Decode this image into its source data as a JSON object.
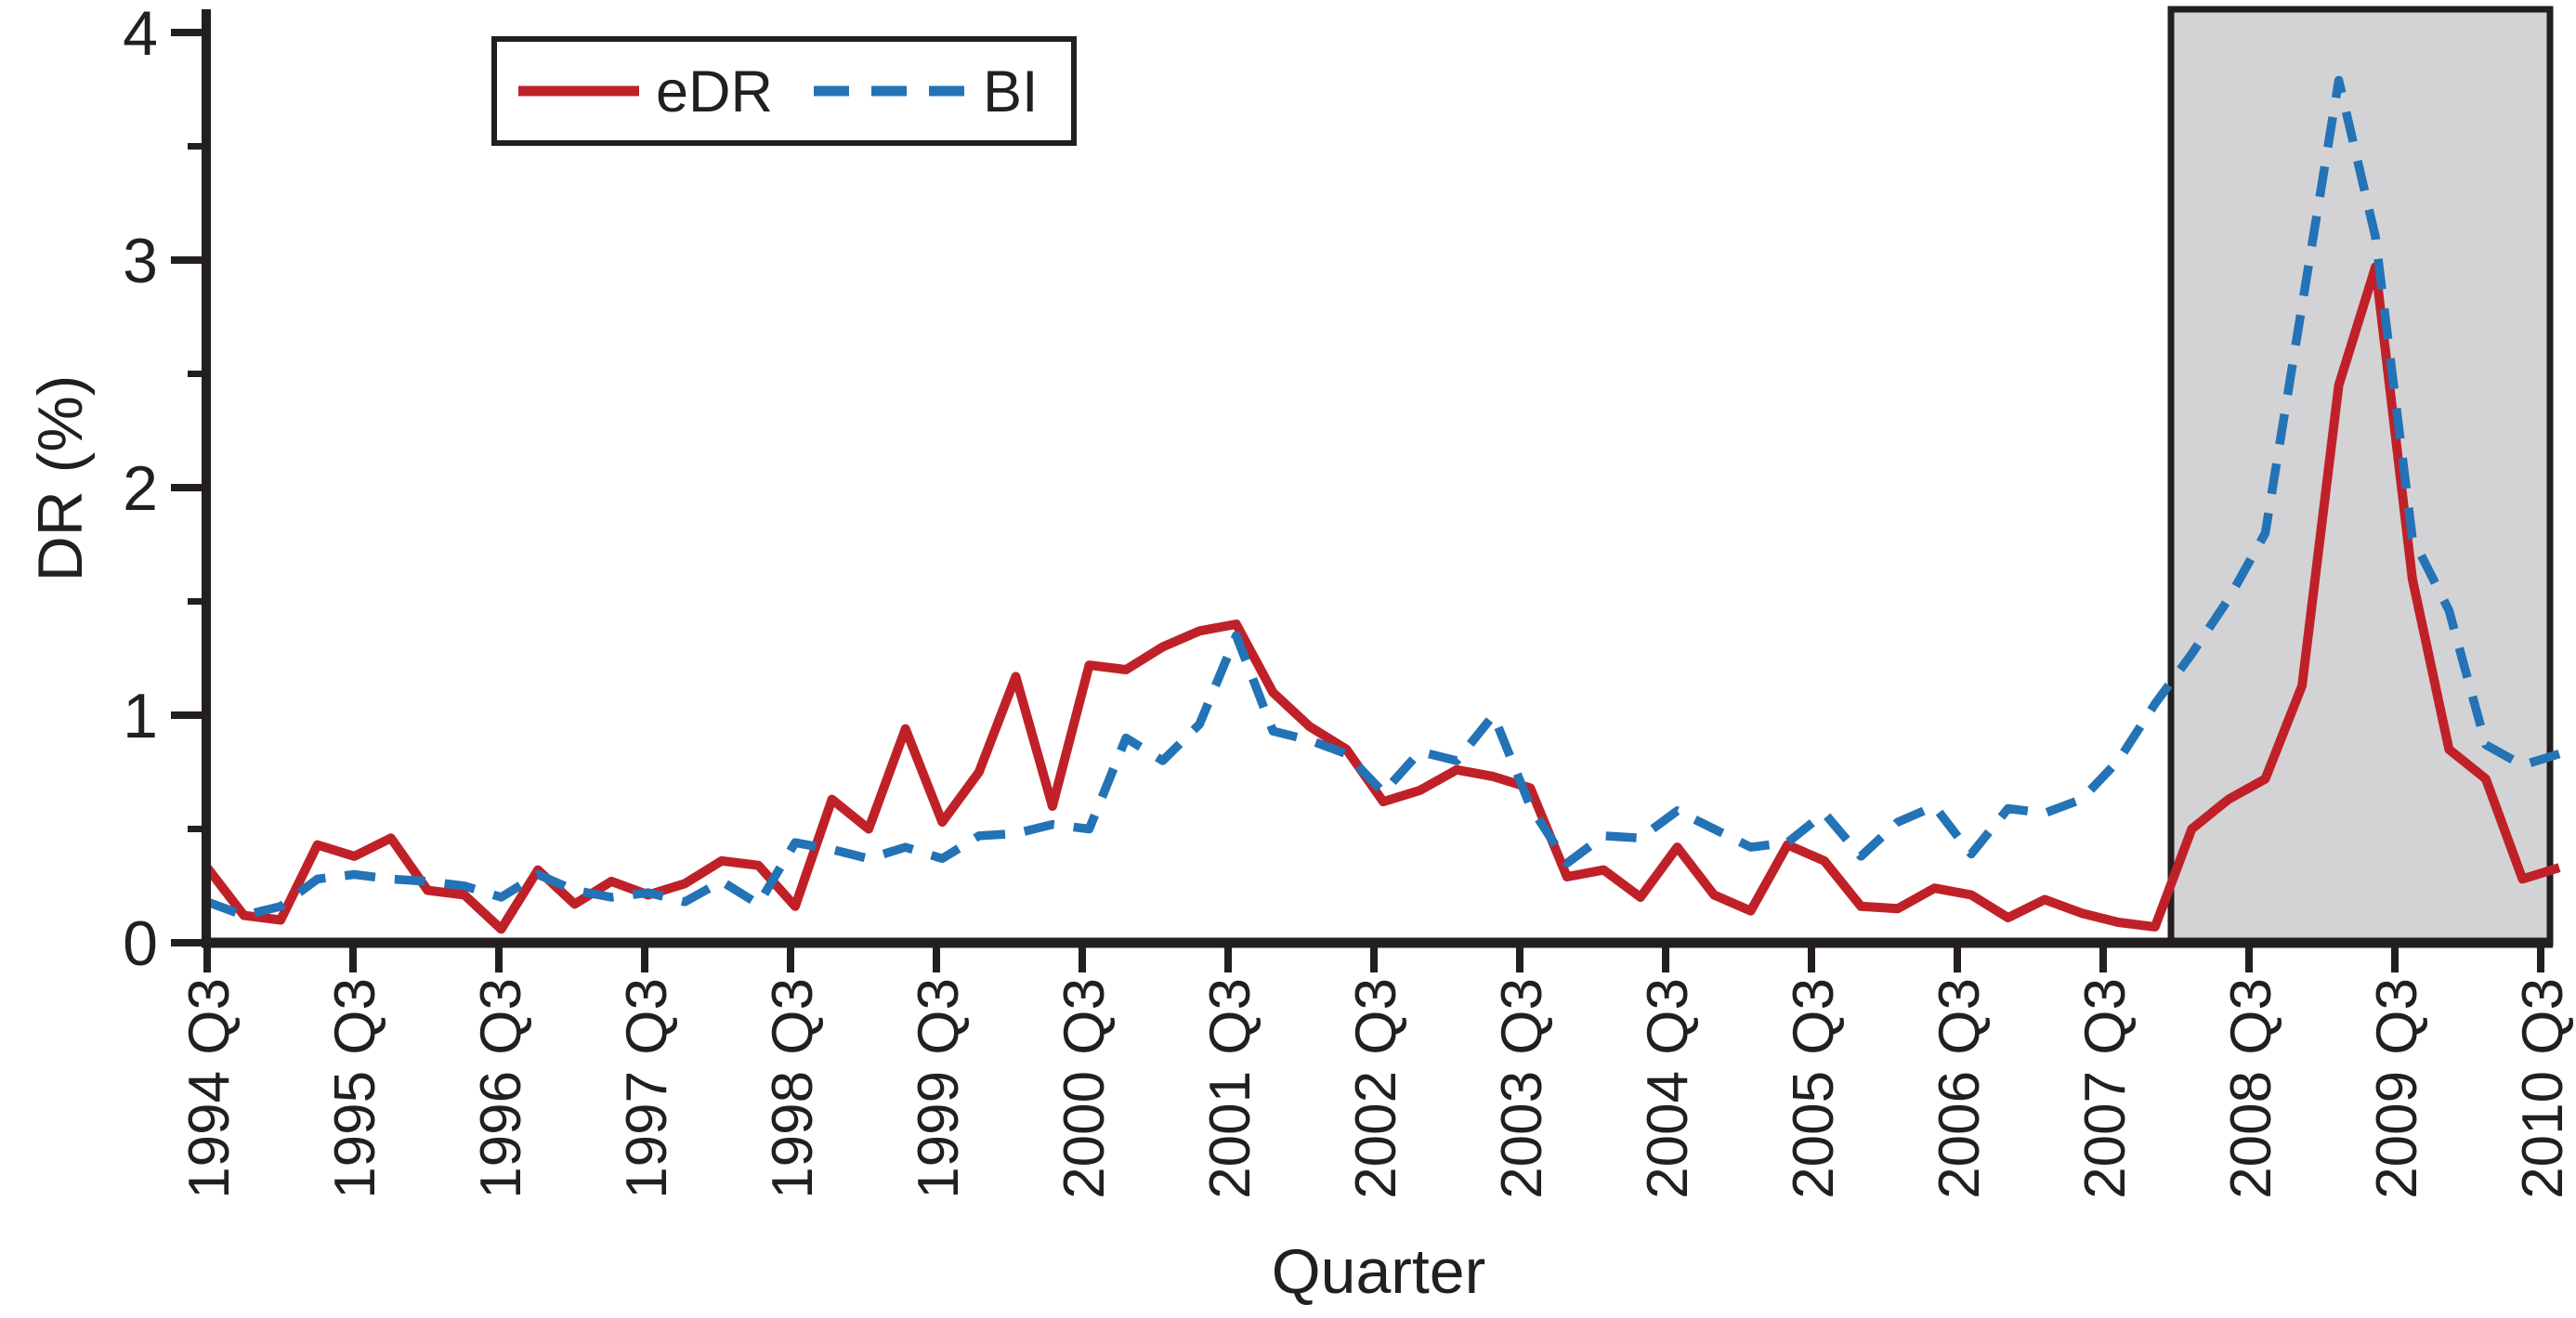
{
  "chart_data": {
    "type": "line",
    "title": "",
    "xlabel": "Quarter",
    "ylabel": "DR (%)",
    "ylim": [
      0,
      4.1
    ],
    "y_major_ticks": [
      0,
      1,
      2,
      3,
      4
    ],
    "y_minor_ticks": [
      0.5,
      1.5,
      2.5,
      3.5
    ],
    "grid": "off",
    "legend_position": "top-left-inside",
    "x_tick_labels": [
      "1994 Q3",
      "1995 Q3",
      "1996 Q3",
      "1997 Q3",
      "1998 Q3",
      "1999 Q3",
      "2000 Q3",
      "2001 Q3",
      "2002 Q3",
      "2003 Q3",
      "2004 Q3",
      "2005 Q3",
      "2006 Q3",
      "2007 Q3",
      "2008 Q3",
      "2009 Q3",
      "2010 Q3"
    ],
    "x_freq": "quarterly",
    "x_quarters": [
      "1994 Q3",
      "1994 Q4",
      "1995 Q1",
      "1995 Q2",
      "1995 Q3",
      "1995 Q4",
      "1996 Q1",
      "1996 Q2",
      "1996 Q3",
      "1996 Q4",
      "1997 Q1",
      "1997 Q2",
      "1997 Q3",
      "1997 Q4",
      "1998 Q1",
      "1998 Q2",
      "1998 Q3",
      "1998 Q4",
      "1999 Q1",
      "1999 Q2",
      "1999 Q3",
      "1999 Q4",
      "2000 Q1",
      "2000 Q2",
      "2000 Q3",
      "2000 Q4",
      "2001 Q1",
      "2001 Q2",
      "2001 Q3",
      "2001 Q4",
      "2002 Q1",
      "2002 Q2",
      "2002 Q3",
      "2002 Q4",
      "2003 Q1",
      "2003 Q2",
      "2003 Q3",
      "2003 Q4",
      "2004 Q1",
      "2004 Q2",
      "2004 Q3",
      "2004 Q4",
      "2005 Q1",
      "2005 Q2",
      "2005 Q3",
      "2005 Q4",
      "2006 Q1",
      "2006 Q2",
      "2006 Q3",
      "2006 Q4",
      "2007 Q1",
      "2007 Q2",
      "2007 Q3",
      "2007 Q4",
      "2008 Q1",
      "2008 Q2",
      "2008 Q3",
      "2008 Q4",
      "2009 Q1",
      "2009 Q2",
      "2009 Q3",
      "2009 Q4",
      "2010 Q1",
      "2010 Q2",
      "2010 Q3"
    ],
    "series": [
      {
        "name": "eDR",
        "style": "solid",
        "color": "#c02128",
        "values": [
          0.33,
          0.12,
          0.1,
          0.43,
          0.38,
          0.46,
          0.23,
          0.21,
          0.06,
          0.32,
          0.17,
          0.27,
          0.21,
          0.26,
          0.36,
          0.34,
          0.16,
          0.63,
          0.5,
          0.94,
          0.53,
          0.75,
          1.17,
          0.6,
          1.22,
          1.2,
          1.3,
          1.37,
          1.4,
          1.1,
          0.95,
          0.85,
          0.62,
          0.67,
          0.76,
          0.73,
          0.68,
          0.29,
          0.32,
          0.2,
          0.42,
          0.21,
          0.14,
          0.43,
          0.36,
          0.16,
          0.15,
          0.24,
          0.21,
          0.11,
          0.19,
          0.13,
          0.09,
          0.07,
          0.5,
          0.63,
          0.72,
          1.13,
          2.45,
          2.97,
          1.6,
          0.85,
          0.72,
          0.28,
          0.33
        ]
      },
      {
        "name": "BI",
        "style": "dashed",
        "color": "#2373b6",
        "values": [
          0.18,
          0.12,
          0.16,
          0.28,
          0.3,
          0.28,
          0.27,
          0.25,
          0.2,
          0.3,
          0.23,
          0.2,
          0.22,
          0.18,
          0.27,
          0.17,
          0.44,
          0.41,
          0.37,
          0.42,
          0.37,
          0.47,
          0.48,
          0.52,
          0.5,
          0.9,
          0.8,
          0.96,
          1.35,
          0.93,
          0.89,
          0.83,
          0.66,
          0.84,
          0.8,
          1.0,
          0.6,
          0.35,
          0.47,
          0.46,
          0.58,
          0.5,
          0.42,
          0.44,
          0.57,
          0.38,
          0.53,
          0.6,
          0.39,
          0.59,
          0.57,
          0.63,
          0.8,
          1.05,
          1.27,
          1.51,
          1.8,
          2.8,
          3.79,
          3.1,
          1.78,
          1.46,
          0.87,
          0.78,
          0.83
        ]
      }
    ],
    "shaded_region": {
      "from_label": "2008 Q1",
      "to_label": "2010 Q4",
      "fill_color": "#d3d3d5",
      "border_color": "#231f20"
    },
    "axis_color": "#231f20"
  },
  "labels": {
    "ylabel": "DR (%)",
    "xlabel": "Quarter",
    "legend_edr": "eDR",
    "legend_bi": "BI"
  }
}
